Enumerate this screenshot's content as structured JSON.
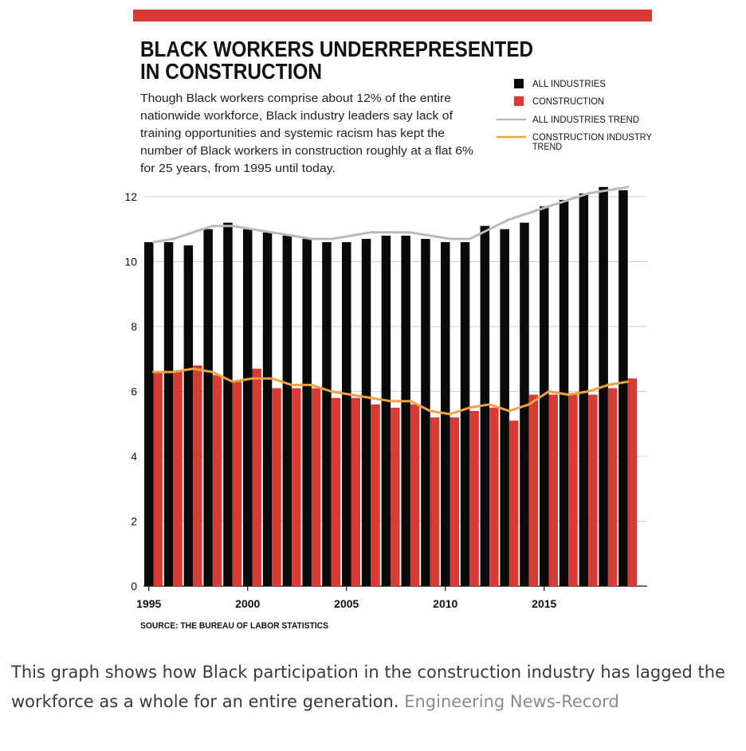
{
  "chart_data": {
    "type": "bar",
    "title_lines": [
      "BLACK WORKERS UNDERREPRESENTED",
      "IN CONSTRUCTION"
    ],
    "subtitle_lines": [
      "Though Black workers comprise about 12% of the entire",
      "nationwide workforce, Black industry leaders say lack of",
      "training opportunities and systemic racism has kept the",
      "number of Black workers in construction roughly at a flat 6%",
      "for 25 years, from 1995 until today."
    ],
    "colors": {
      "banner": "#d83a36",
      "all_industries": "#0a0a0a",
      "construction": "#d83a36",
      "all_trend": "#b9b9b9",
      "construction_trend": "#f0a143",
      "grid": "#cfcfcf"
    },
    "legend": {
      "all_industries": "ALL INDUSTRIES",
      "construction": "CONSTRUCTION",
      "all_trend": "ALL INDUSTRIES TREND",
      "construction_trend_lines": [
        "CONSTRUCTION INDUSTRY",
        "TREND"
      ]
    },
    "years": [
      1995,
      1996,
      1997,
      1998,
      1999,
      2000,
      2001,
      2002,
      2003,
      2004,
      2005,
      2006,
      2007,
      2008,
      2009,
      2010,
      2011,
      2012,
      2013,
      2014,
      2015,
      2016,
      2017,
      2018,
      2019
    ],
    "series": [
      {
        "name": "ALL INDUSTRIES",
        "values": [
          10.6,
          10.6,
          10.5,
          11.0,
          11.2,
          11.0,
          10.9,
          10.8,
          10.7,
          10.6,
          10.6,
          10.7,
          10.8,
          10.8,
          10.7,
          10.6,
          10.6,
          11.1,
          11.0,
          11.2,
          11.7,
          11.9,
          12.1,
          12.3,
          12.2
        ]
      },
      {
        "name": "CONSTRUCTION",
        "values": [
          6.6,
          6.6,
          6.8,
          6.5,
          6.3,
          6.7,
          6.1,
          6.1,
          6.1,
          5.8,
          5.8,
          5.6,
          5.5,
          5.6,
          5.2,
          5.2,
          5.4,
          5.5,
          5.1,
          5.9,
          5.9,
          5.9,
          5.9,
          6.1,
          6.4
        ]
      }
    ],
    "all_industries_trend": [
      10.6,
      10.7,
      10.9,
      11.1,
      11.1,
      11.0,
      10.9,
      10.8,
      10.7,
      10.7,
      10.8,
      10.9,
      10.9,
      10.9,
      10.8,
      10.7,
      10.7,
      11.0,
      11.3,
      11.5,
      11.7,
      11.9,
      12.1,
      12.2,
      12.3
    ],
    "construction_trend": [
      6.6,
      6.6,
      6.7,
      6.6,
      6.3,
      6.4,
      6.4,
      6.2,
      6.2,
      6.0,
      5.9,
      5.8,
      5.7,
      5.7,
      5.4,
      5.3,
      5.5,
      5.6,
      5.4,
      5.6,
      6.0,
      5.9,
      6.0,
      6.2,
      6.3
    ],
    "x_tick_labels": [
      "1995",
      "2000",
      "2005",
      "2010",
      "2015"
    ],
    "y_ticks": [
      0,
      2,
      4,
      6,
      8,
      10,
      12
    ],
    "ylim": [
      0,
      12.6
    ],
    "grid": true,
    "legend_position": "top-right",
    "source": "SOURCE: THE BUREAU OF LABOR STATISTICS"
  },
  "caption": {
    "text": "This graph shows how Black participation in the construction industry has lagged the workforce as a whole for an entire generation.",
    "credit": "Engineering News-Record"
  }
}
